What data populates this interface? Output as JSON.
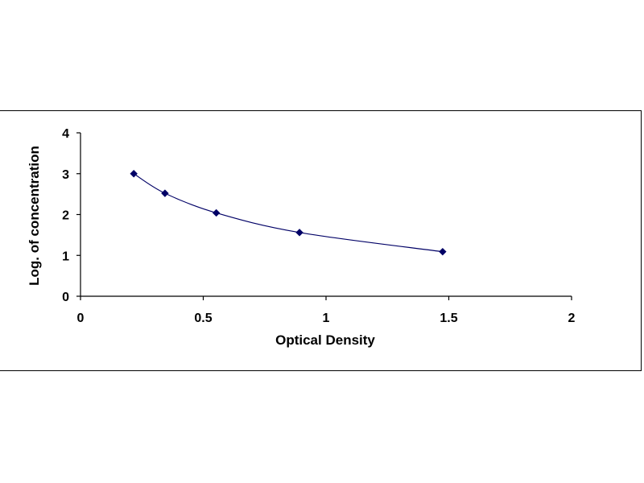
{
  "chart_data": {
    "type": "scatter",
    "title": "",
    "xlabel": "Optical Density",
    "ylabel": "Log. of concentration",
    "xlim": [
      0,
      2
    ],
    "ylim": [
      0,
      4
    ],
    "xticks": [
      0,
      0.5,
      1,
      1.5,
      2
    ],
    "xtick_labels": [
      "0",
      "0.5",
      "1",
      "1.5",
      "2"
    ],
    "yticks": [
      0,
      1,
      2,
      3,
      4
    ],
    "ytick_labels": [
      "0",
      "1",
      "2",
      "3",
      "4"
    ],
    "grid": false,
    "legend": "none",
    "marker": "diamond",
    "trendline": "smooth",
    "series_color": "#000066",
    "series": [
      {
        "x": [
          0.217,
          0.344,
          0.553,
          0.892,
          1.475
        ],
        "y": [
          3.0,
          2.52,
          2.04,
          1.56,
          1.09
        ]
      }
    ]
  }
}
